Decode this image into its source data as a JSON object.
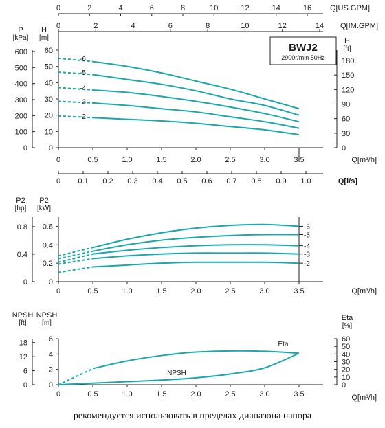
{
  "caption": "рекомендуется использовать в пределах диапазона напора",
  "colors": {
    "curve": "#1aa7ab",
    "axis": "#222222",
    "grid": "#333333"
  },
  "chart_data": [
    {
      "type": "line",
      "id": "head",
      "model_label": "BWJ2",
      "speed_label": "2900r/min  50Hz",
      "x_axis": {
        "label": "Q[m³/h]",
        "range": [
          0,
          3.5
        ],
        "ticks": [
          "0",
          "0.5",
          "1.0",
          "1.5",
          "2.0",
          "2.5",
          "3.0",
          "3.5"
        ]
      },
      "x_axis_ls": {
        "label": "Q[l/s]",
        "ticks": [
          "0",
          "0.1",
          "0.2",
          "0.3",
          "0.4",
          "0.5",
          "0.6",
          "0.7",
          "0.8",
          "0.9",
          "1.0"
        ]
      },
      "x_axis_us": {
        "label": "Q[US.GPM]",
        "ticks": [
          "0",
          "2",
          "4",
          "6",
          "8",
          "10",
          "12",
          "14",
          "16"
        ]
      },
      "x_axis_im": {
        "label": "Q[IM.GPM]",
        "ticks": [
          "0",
          "2",
          "4",
          "6",
          "8",
          "10",
          "12",
          "14"
        ]
      },
      "y_axis_h": {
        "title": "H",
        "unit": "[m]",
        "range": [
          0,
          60
        ],
        "ticks": [
          "0",
          "10",
          "20",
          "30",
          "40",
          "50",
          "60"
        ]
      },
      "y_axis_p": {
        "title": "P",
        "unit": "[kPa]",
        "ticks": [
          "0",
          "100",
          "200",
          "300",
          "400",
          "500",
          "600"
        ]
      },
      "y_axis_ft": {
        "title": "H",
        "unit": "[ft]",
        "ticks": [
          "0",
          "30",
          "60",
          "90",
          "120",
          "150",
          "180"
        ]
      },
      "series": [
        {
          "name": "-6",
          "x": [
            0.5,
            1.0,
            1.5,
            2.0,
            2.5,
            3.0,
            3.5
          ],
          "y": [
            53,
            50,
            46,
            41,
            36,
            30,
            24
          ]
        },
        {
          "name": "-5",
          "x": [
            0.5,
            1.0,
            1.5,
            2.0,
            2.5,
            3.0,
            3.5
          ],
          "y": [
            45,
            42,
            39,
            35,
            30,
            26,
            20
          ]
        },
        {
          "name": "-4",
          "x": [
            0.5,
            1.0,
            1.5,
            2.0,
            2.5,
            3.0,
            3.5
          ],
          "y": [
            35.5,
            34,
            31.5,
            28.5,
            25,
            21,
            16
          ]
        },
        {
          "name": "-3",
          "x": [
            0.5,
            1.0,
            1.5,
            2.0,
            2.5,
            3.0,
            3.5
          ],
          "y": [
            27.5,
            26,
            24,
            22,
            19,
            16,
            12
          ]
        },
        {
          "name": "-2",
          "x": [
            0.5,
            1.0,
            1.5,
            2.0,
            2.5,
            3.0,
            3.5
          ],
          "y": [
            18.5,
            17.5,
            16.5,
            15,
            13,
            11,
            8
          ]
        }
      ],
      "dashed_from": 0,
      "dashed_to": 0.5,
      "dashed_start_y": [
        55,
        46.5,
        37,
        28.5,
        19.5
      ]
    },
    {
      "type": "line",
      "id": "power",
      "x_axis": {
        "label": "Q[m³/h]",
        "range": [
          0,
          3.5
        ],
        "ticks": [
          "0",
          "0.5",
          "1.0",
          "1.5",
          "2.0",
          "2.5",
          "3.0",
          "3.5"
        ]
      },
      "y_axis_kw": {
        "title": "P2",
        "unit": "[kW]",
        "range": [
          0,
          0.7
        ],
        "ticks": [
          "0",
          "0.2",
          "0.4",
          "0.6"
        ]
      },
      "y_axis_hp": {
        "title": "P2",
        "unit": "[hp]",
        "ticks": [
          "0",
          "0.4",
          "0.8"
        ]
      },
      "series": [
        {
          "name": "-6",
          "x": [
            0.5,
            1.0,
            1.5,
            2.0,
            2.5,
            3.0,
            3.5
          ],
          "y": [
            0.37,
            0.46,
            0.53,
            0.58,
            0.61,
            0.62,
            0.6
          ]
        },
        {
          "name": "-5",
          "x": [
            0.5,
            1.0,
            1.5,
            2.0,
            2.5,
            3.0,
            3.5
          ],
          "y": [
            0.33,
            0.4,
            0.45,
            0.48,
            0.5,
            0.51,
            0.51
          ]
        },
        {
          "name": "-4",
          "x": [
            0.5,
            1.0,
            1.5,
            2.0,
            2.5,
            3.0,
            3.5
          ],
          "y": [
            0.3,
            0.34,
            0.37,
            0.39,
            0.4,
            0.4,
            0.39
          ]
        },
        {
          "name": "-3",
          "x": [
            0.5,
            1.0,
            1.5,
            2.0,
            2.5,
            3.0,
            3.5
          ],
          "y": [
            0.25,
            0.28,
            0.3,
            0.31,
            0.31,
            0.31,
            0.3
          ]
        },
        {
          "name": "-2",
          "x": [
            0.5,
            1.0,
            1.5,
            2.0,
            2.5,
            3.0,
            3.5
          ],
          "y": [
            0.16,
            0.18,
            0.2,
            0.21,
            0.21,
            0.21,
            0.2
          ]
        }
      ],
      "dashed_from": 0,
      "dashed_to": 0.5,
      "dashed_start_y": [
        0.28,
        0.25,
        0.21,
        0.19,
        0.1
      ]
    },
    {
      "type": "line",
      "id": "npsh",
      "x_axis": {
        "label": "Q[m³/h]",
        "range": [
          0,
          3.5
        ],
        "ticks": [
          "0",
          "0.5",
          "1.0",
          "1.5",
          "2.0",
          "2.5",
          "3.0",
          "3.5"
        ]
      },
      "y_axis_m": {
        "title": "NPSH",
        "unit": "[m]",
        "range": [
          0,
          6
        ],
        "ticks": [
          "0",
          "2",
          "4",
          "6"
        ]
      },
      "y_axis_ft": {
        "title": "NPSH",
        "unit": "[ft]",
        "ticks": [
          "0",
          "6",
          "12",
          "18"
        ]
      },
      "y_axis_eta": {
        "title": "Eta",
        "unit": "[%]",
        "range": [
          0,
          60
        ],
        "ticks": [
          "0",
          "10",
          "20",
          "30",
          "40",
          "50",
          "60"
        ]
      },
      "series": [
        {
          "name": "Eta",
          "x": [
            0.5,
            1.0,
            1.5,
            2.0,
            2.5,
            3.0,
            3.5
          ],
          "y": [
            21,
            31,
            38,
            42.5,
            44,
            43.5,
            41
          ]
        },
        {
          "name": "NPSH",
          "x": [
            0,
            0.5,
            1.0,
            1.5,
            2.0,
            2.5,
            3.0,
            3.5
          ],
          "y": [
            0,
            0.2,
            0.4,
            0.6,
            0.9,
            1.4,
            2.2,
            4.1
          ]
        }
      ],
      "eta_dashed_from": [
        0,
        0
      ],
      "eta_label": "Eta",
      "npsh_label": "NPSH"
    }
  ]
}
